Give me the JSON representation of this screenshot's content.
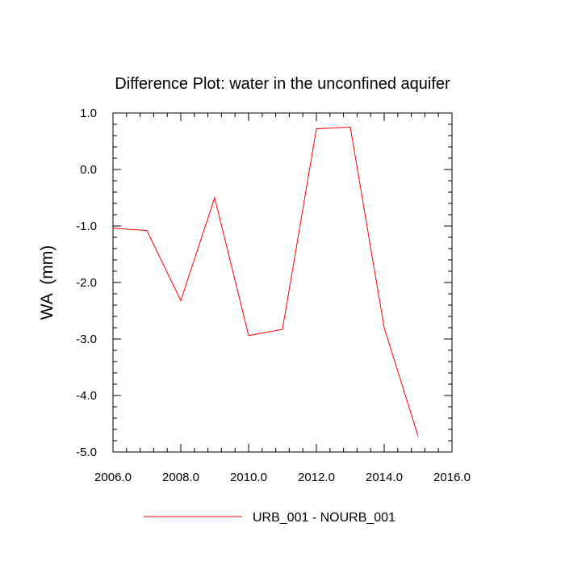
{
  "chart_data": {
    "type": "line",
    "title": "Difference Plot: water in the unconfined aquifer",
    "xlabel": "",
    "ylabel": "WA  (mm)",
    "xlim": [
      2006.0,
      2016.0
    ],
    "ylim": [
      -5.0,
      1.0
    ],
    "x_ticks": [
      2006.0,
      2008.0,
      2010.0,
      2012.0,
      2014.0,
      2016.0
    ],
    "x_tick_labels": [
      "2006.0",
      "2008.0",
      "2010.0",
      "2012.0",
      "2014.0",
      "2016.0"
    ],
    "y_ticks": [
      1.0,
      0.0,
      -1.0,
      -2.0,
      -3.0,
      -4.0,
      -5.0
    ],
    "y_tick_labels": [
      "1.0",
      "0.0",
      "-1.0",
      "-2.0",
      "-3.0",
      "-4.0",
      "-5.0"
    ],
    "grid": false,
    "legend_position": "bottom",
    "series": [
      {
        "name": "URB_001 - NOURB_001",
        "color": "#ff0000",
        "x": [
          2006,
          2007,
          2008,
          2009,
          2010,
          2011,
          2012,
          2013,
          2014,
          2015
        ],
        "y": [
          -1.04,
          -1.08,
          -2.32,
          -0.5,
          -2.94,
          -2.83,
          0.72,
          0.75,
          -2.8,
          -4.72
        ]
      }
    ]
  }
}
